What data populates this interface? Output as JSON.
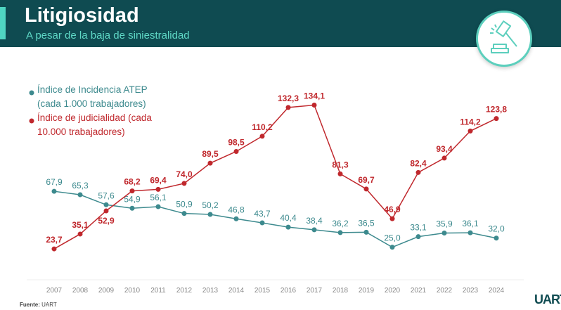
{
  "header": {
    "title": "Litigiosidad",
    "subtitle": "A pesar de la baja de siniestralidad"
  },
  "footer": {
    "source_label": "Fuente:",
    "source": "UART",
    "logo": "UART"
  },
  "icon": "gavel-icon",
  "chart_data": {
    "type": "line",
    "categories": [
      "2007",
      "2008",
      "2009",
      "2010",
      "2011",
      "2012",
      "2013",
      "2014",
      "2015",
      "2016",
      "2017",
      "2018",
      "2019",
      "2020",
      "2021",
      "2022",
      "2023",
      "2024"
    ],
    "series": [
      {
        "name": "Índice de Incidencia ATEP\n(cada 1.000 trabajadores)",
        "color": "#3d8a8e",
        "values": [
          67.9,
          65.3,
          57.6,
          54.9,
          56.1,
          50.9,
          50.2,
          46.8,
          43.7,
          40.4,
          38.4,
          36.2,
          36.5,
          25.0,
          33.1,
          35.9,
          36.1,
          32.0
        ]
      },
      {
        "name": "Índice de judicialidad (cada\n10.000 trabajadores)",
        "color": "#c0282d",
        "values": [
          23.7,
          35.1,
          52.9,
          68.2,
          69.4,
          74.0,
          89.5,
          98.5,
          110.2,
          132.3,
          134.1,
          81.3,
          69.7,
          46.9,
          82.4,
          93.4,
          114.2,
          123.8
        ]
      }
    ],
    "ylim": [
      0,
      145
    ],
    "grid": false,
    "legend": "top-left",
    "xlabel": "",
    "ylabel": ""
  }
}
